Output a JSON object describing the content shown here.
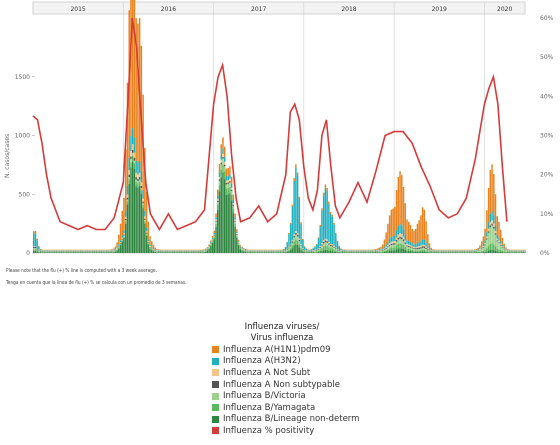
{
  "chart_data": {
    "type": "bar",
    "years": [
      "2015",
      "2016",
      "2017",
      "2018",
      "2019",
      "2020"
    ],
    "y_left": {
      "label": "N. casos/cases",
      "ticks": [
        0,
        500,
        1000,
        1500
      ],
      "max": 2000
    },
    "y_right": {
      "ticks": [
        "0%",
        "10%",
        "20%",
        "30%",
        "40%",
        "50%",
        "60%"
      ],
      "max": 60
    },
    "x_ticks": [
      "",
      ""
    ],
    "colors": {
      "h1n1": "#e8821e",
      "h3n2": "#1fb0c0",
      "notsubt": "#f2c58a",
      "nonsubt": "#555555",
      "victoria": "#9ad18b",
      "yamagata": "#5cb85c",
      "lineage": "#2e8540",
      "positivity": "#d63b3b"
    },
    "positivity_line": [
      [
        2015.0,
        35
      ],
      [
        2015.05,
        34
      ],
      [
        2015.1,
        28
      ],
      [
        2015.15,
        20
      ],
      [
        2015.2,
        14
      ],
      [
        2015.3,
        8
      ],
      [
        2015.4,
        7
      ],
      [
        2015.5,
        6
      ],
      [
        2015.6,
        7
      ],
      [
        2015.7,
        6
      ],
      [
        2015.8,
        6
      ],
      [
        2015.9,
        9
      ],
      [
        2016.0,
        18
      ],
      [
        2016.05,
        38
      ],
      [
        2016.1,
        60
      ],
      [
        2016.15,
        52
      ],
      [
        2016.2,
        34
      ],
      [
        2016.25,
        18
      ],
      [
        2016.3,
        10
      ],
      [
        2016.4,
        6
      ],
      [
        2016.5,
        10
      ],
      [
        2016.6,
        6
      ],
      [
        2016.7,
        7
      ],
      [
        2016.8,
        8
      ],
      [
        2016.9,
        11
      ],
      [
        2017.0,
        38
      ],
      [
        2017.05,
        45
      ],
      [
        2017.1,
        48
      ],
      [
        2017.15,
        40
      ],
      [
        2017.2,
        25
      ],
      [
        2017.25,
        14
      ],
      [
        2017.3,
        8
      ],
      [
        2017.4,
        9
      ],
      [
        2017.5,
        12
      ],
      [
        2017.6,
        8
      ],
      [
        2017.7,
        10
      ],
      [
        2017.8,
        20
      ],
      [
        2017.85,
        36
      ],
      [
        2017.9,
        38
      ],
      [
        2017.95,
        34
      ],
      [
        2018.0,
        22
      ],
      [
        2018.05,
        14
      ],
      [
        2018.1,
        11
      ],
      [
        2018.15,
        16
      ],
      [
        2018.2,
        30
      ],
      [
        2018.25,
        34
      ],
      [
        2018.3,
        22
      ],
      [
        2018.35,
        12
      ],
      [
        2018.4,
        9
      ],
      [
        2018.5,
        13
      ],
      [
        2018.6,
        18
      ],
      [
        2018.7,
        13
      ],
      [
        2018.8,
        21
      ],
      [
        2018.9,
        30
      ],
      [
        2019.0,
        31
      ],
      [
        2019.1,
        31
      ],
      [
        2019.2,
        28
      ],
      [
        2019.3,
        22
      ],
      [
        2019.4,
        17
      ],
      [
        2019.5,
        11
      ],
      [
        2019.6,
        9
      ],
      [
        2019.7,
        10
      ],
      [
        2019.8,
        14
      ],
      [
        2019.9,
        24
      ],
      [
        2020.0,
        38
      ],
      [
        2020.05,
        42
      ],
      [
        2020.1,
        45
      ],
      [
        2020.15,
        38
      ],
      [
        2020.2,
        22
      ],
      [
        2020.25,
        8
      ]
    ],
    "peaks": [
      {
        "center": 2015.0,
        "width": 0.04,
        "h1n1": 20,
        "h3n2": 140,
        "notsubt": 0,
        "nonsubt": 10,
        "victoria": 10,
        "yamagata": 10,
        "lineage": 20
      },
      {
        "center": 2016.12,
        "width": 0.1,
        "h1n1": 1500,
        "h3n2": 120,
        "notsubt": 40,
        "nonsubt": 20,
        "victoria": 20,
        "yamagata": 40,
        "lineage": 700
      },
      {
        "center": 2017.12,
        "width": 0.1,
        "h1n1": 80,
        "h3n2": 40,
        "notsubt": 20,
        "nonsubt": 10,
        "victoria": 40,
        "yamagata": 60,
        "lineage": 620
      },
      {
        "center": 2017.9,
        "width": 0.06,
        "h1n1": 20,
        "h3n2": 450,
        "notsubt": 10,
        "nonsubt": 10,
        "victoria": 30,
        "yamagata": 30,
        "lineage": 60
      },
      {
        "center": 2018.25,
        "width": 0.08,
        "h1n1": 20,
        "h3n2": 380,
        "notsubt": 10,
        "nonsubt": 10,
        "victoria": 20,
        "yamagata": 30,
        "lineage": 20
      },
      {
        "center": 2019.05,
        "width": 0.12,
        "h1n1": 360,
        "h3n2": 60,
        "notsubt": 20,
        "nonsubt": 10,
        "victoria": 30,
        "yamagata": 30,
        "lineage": 30
      },
      {
        "center": 2019.3,
        "width": 0.06,
        "h1n1": 260,
        "h3n2": 40,
        "notsubt": 10,
        "nonsubt": 10,
        "victoria": 10,
        "yamagata": 10,
        "lineage": 10
      },
      {
        "center": 2020.08,
        "width": 0.08,
        "h1n1": 320,
        "h3n2": 60,
        "notsubt": 20,
        "nonsubt": 10,
        "victoria": 120,
        "yamagata": 40,
        "lineage": 20
      }
    ]
  },
  "notes": {
    "en": "Please note that the flu (+) % line is computed with a 3 week average.",
    "es": "Tenga en cuenta que la línea de flu (+) % se calcula con un promedio de 3 semanas."
  },
  "legend": {
    "title1": "Influenza viruses/",
    "title2": "Virus influenza",
    "items": [
      {
        "label": "Influenza A(H1N1)pdm09",
        "color": "#e8821e"
      },
      {
        "label": "Influenza A(H3N2)",
        "color": "#1fb0c0"
      },
      {
        "label": "Influenza A Not Subt",
        "color": "#f2c58a"
      },
      {
        "label": "Influenza A Non subtypable",
        "color": "#555555"
      },
      {
        "label": "Influenza B/Victoria",
        "color": "#9ad18b"
      },
      {
        "label": "Influenza B/Yamagata",
        "color": "#5cb85c"
      },
      {
        "label": "Influenza B/Lineage non-determ",
        "color": "#2e8540"
      },
      {
        "label": "Influenza % positivity",
        "color": "#d63b3b"
      }
    ]
  }
}
